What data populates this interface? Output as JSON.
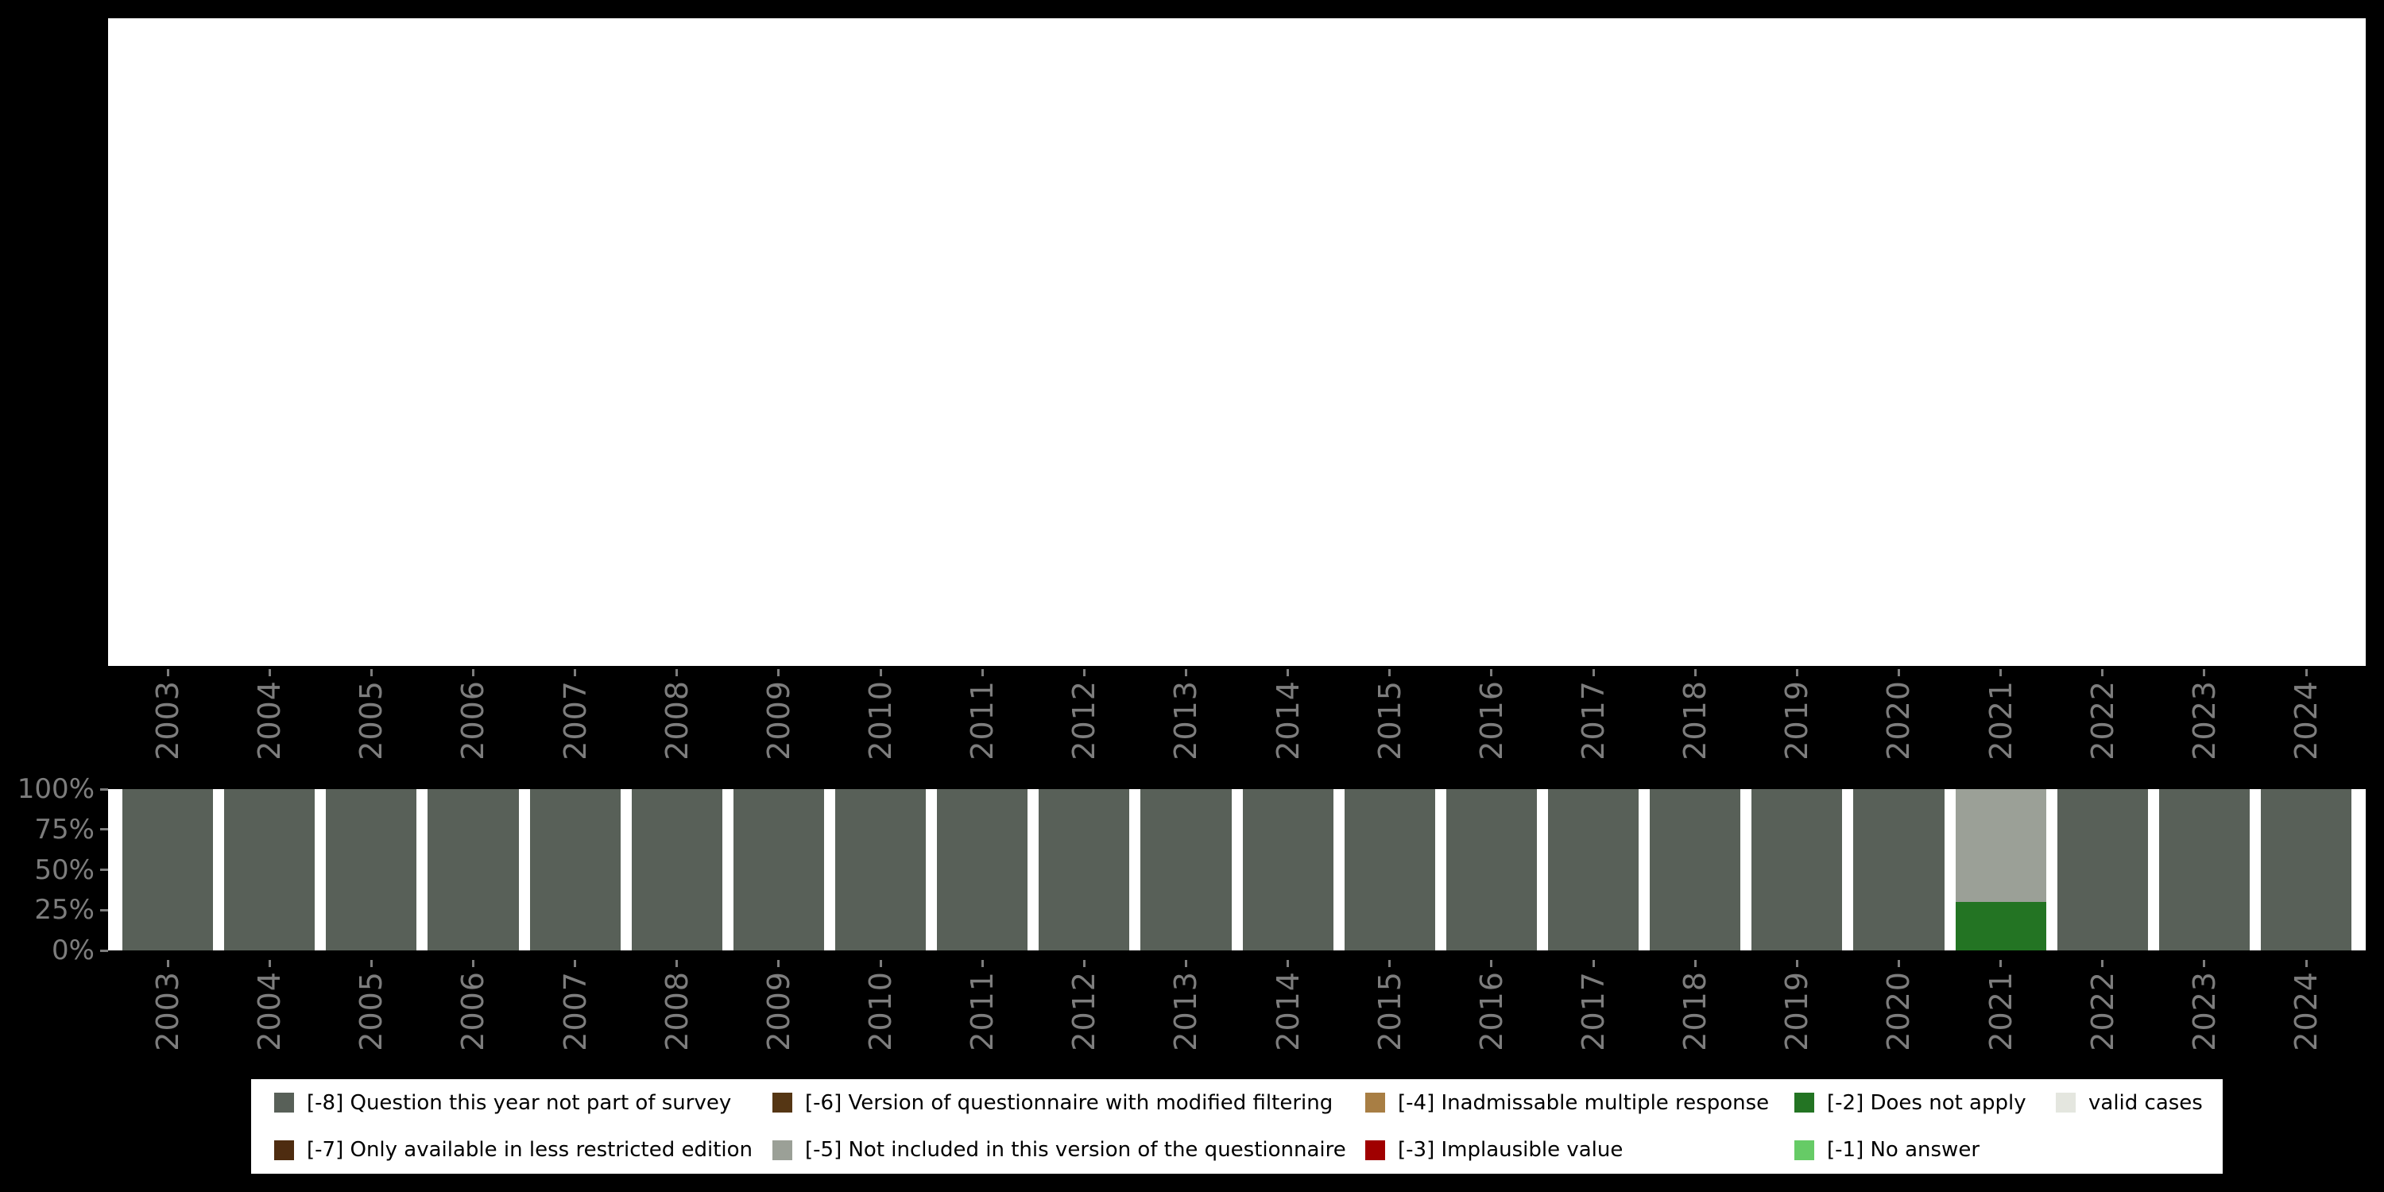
{
  "palette": {
    "-8": "#586058",
    "-7": "#4e2c10",
    "-6": "#553614",
    "-5": "#9ba097",
    "-4": "#a87e44",
    "-3": "#a00000",
    "-2": "#237423",
    "-1": "#66cb66",
    "valid": "#e4e6df"
  },
  "axis": {
    "y_ticks": [
      "100%",
      "75%",
      "50%",
      "25%",
      "0%"
    ],
    "label_color": "#7d7d7d"
  },
  "chart_data": {
    "type": "bar",
    "stacked": true,
    "title": "",
    "xlabel": "",
    "ylabel": "",
    "ylim": [
      0,
      100
    ],
    "legend_position": "bottom",
    "categories": [
      "2003",
      "2004",
      "2005",
      "2006",
      "2007",
      "2008",
      "2009",
      "2010",
      "2011",
      "2012",
      "2013",
      "2014",
      "2015",
      "2016",
      "2017",
      "2018",
      "2019",
      "2020",
      "2021",
      "2022",
      "2023",
      "2024"
    ],
    "series": [
      {
        "name": "[-8] Question this year not part of survey",
        "color_key": "-8",
        "values": [
          100,
          100,
          100,
          100,
          100,
          100,
          100,
          100,
          100,
          100,
          100,
          100,
          100,
          100,
          100,
          100,
          100,
          100,
          0,
          100,
          100,
          100
        ]
      },
      {
        "name": "[-5] Not included in this version of the questionnaire",
        "color_key": "-5",
        "values": [
          0,
          0,
          0,
          0,
          0,
          0,
          0,
          0,
          0,
          0,
          0,
          0,
          0,
          0,
          0,
          0,
          0,
          0,
          70,
          0,
          0,
          0
        ]
      },
      {
        "name": "[-2] Does not apply",
        "color_key": "-2",
        "values": [
          0,
          0,
          0,
          0,
          0,
          0,
          0,
          0,
          0,
          0,
          0,
          0,
          0,
          0,
          0,
          0,
          0,
          0,
          30,
          0,
          0,
          0
        ]
      }
    ]
  },
  "legend": {
    "rows": [
      [
        {
          "color_key": "-8",
          "label": "[-8] Question this year not part of survey"
        },
        {
          "color_key": "-6",
          "label": "[-6] Version of questionnaire with modified filtering"
        },
        {
          "color_key": "-4",
          "label": "[-4] Inadmissable multiple response"
        },
        {
          "color_key": "-2",
          "label": "[-2] Does not apply"
        },
        {
          "color_key": "valid",
          "label": "valid cases"
        }
      ],
      [
        {
          "color_key": "-7",
          "label": "[-7] Only available in less restricted edition"
        },
        {
          "color_key": "-5",
          "label": "[-5] Not included in this version of the questionnaire"
        },
        {
          "color_key": "-3",
          "label": "[-3] Implausible value"
        },
        {
          "color_key": "-1",
          "label": "[-1] No answer"
        }
      ]
    ]
  }
}
